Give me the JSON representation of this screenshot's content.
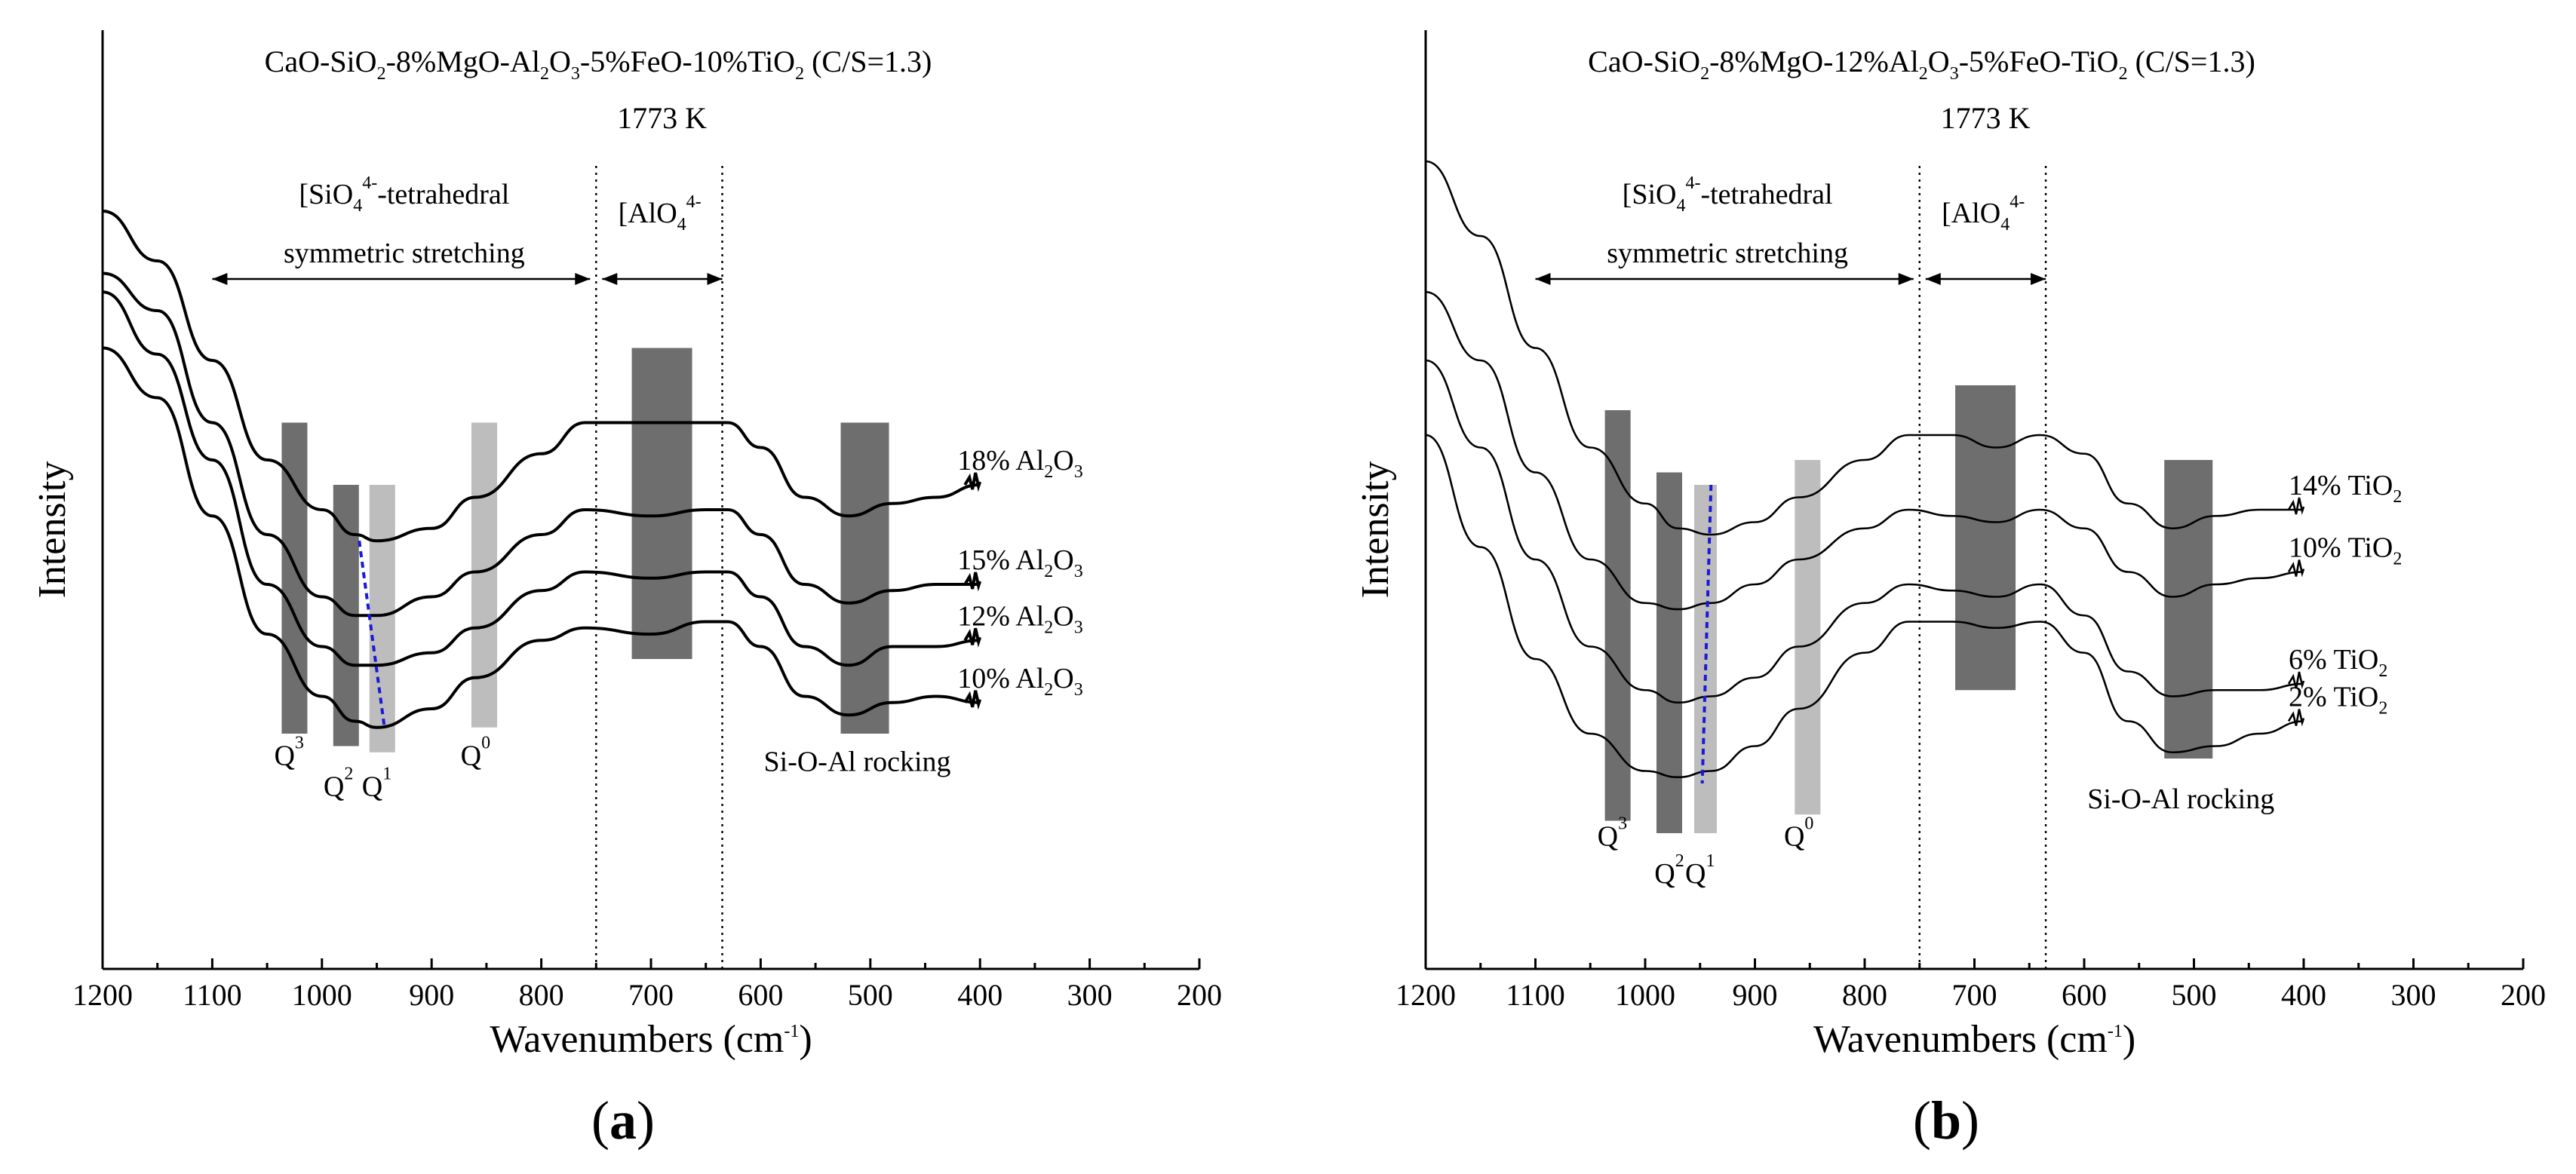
{
  "colors": {
    "band_dark": "#6e6e6e",
    "band_light": "#bdbdbd",
    "trend_line": "#1a1ad6",
    "curve": "#000000"
  },
  "chart_data": [
    {
      "type": "line",
      "panel": "(a)",
      "panel_letter": "a",
      "title_parts": [
        "CaO-SiO",
        "2",
        "-8%MgO-Al",
        "2",
        "O",
        "3",
        "-5%FeO-10%TiO",
        "2",
        " (C/S=1.3)"
      ],
      "temperature": "1773 K",
      "xlabel": "Wavenumbers (cm",
      "xlabel_sup": "-1",
      "xlabel_end": ")",
      "ylabel": "Intensity",
      "xlim": [
        1200,
        200
      ],
      "xticks": [
        1200,
        1100,
        1000,
        900,
        800,
        700,
        600,
        500,
        400,
        300,
        200
      ],
      "region_labels": {
        "sio4_a": "[SiO",
        "sio4_sub": "4",
        "sio4_sup": "4-",
        "sio4_b": "-tetrahedral",
        "sio4_line2": "symmetric stretching",
        "alo4_a": "[AlO",
        "alo4_sub": "4",
        "alo4_sup": "4-",
        "rocking": "Si-O-Al rocking"
      },
      "region_bounds": [
        1100,
        750,
        635
      ],
      "q_labels": [
        {
          "base": "Q",
          "sup": "3",
          "x": 1030
        },
        {
          "base": "Q",
          "sup": "2",
          "x": 985
        },
        {
          "base": "Q",
          "sup": "1",
          "x": 950
        },
        {
          "base": "Q",
          "sup": "0",
          "x": 860
        }
      ],
      "bands": [
        {
          "center": 1025,
          "tone": "dark"
        },
        {
          "center": 978,
          "tone": "dark"
        },
        {
          "center": 945,
          "tone": "light"
        },
        {
          "center": 852,
          "tone": "light"
        },
        {
          "center": 690,
          "tone": "dark"
        },
        {
          "center": 505,
          "tone": "dark"
        }
      ],
      "series": [
        {
          "name": "18% Al2O3",
          "label_a": "18% Al",
          "label_sub1": "2",
          "label_b": "O",
          "label_sub2": "3",
          "x": [
            1200,
            1150,
            1100,
            1050,
            1000,
            970,
            950,
            900,
            860,
            800,
            760,
            700,
            650,
            630,
            600,
            560,
            520,
            480,
            440,
            400
          ],
          "y": [
            1.0,
            0.92,
            0.76,
            0.6,
            0.52,
            0.48,
            0.47,
            0.49,
            0.54,
            0.61,
            0.66,
            0.66,
            0.66,
            0.66,
            0.62,
            0.54,
            0.51,
            0.53,
            0.54,
            0.56
          ]
        },
        {
          "name": "15% Al2O3",
          "label_a": "15% Al",
          "label_sub1": "2",
          "label_b": "O",
          "label_sub2": "3",
          "x": [
            1200,
            1150,
            1100,
            1050,
            1000,
            970,
            950,
            900,
            860,
            800,
            760,
            700,
            650,
            630,
            600,
            560,
            520,
            480,
            440,
            400
          ],
          "y": [
            0.9,
            0.84,
            0.66,
            0.48,
            0.38,
            0.35,
            0.35,
            0.38,
            0.42,
            0.48,
            0.52,
            0.51,
            0.52,
            0.52,
            0.48,
            0.4,
            0.37,
            0.39,
            0.4,
            0.4
          ]
        },
        {
          "name": "12% Al2O3",
          "label_a": "12% Al",
          "label_sub1": "2",
          "label_b": "O",
          "label_sub2": "3",
          "x": [
            1200,
            1150,
            1100,
            1050,
            1000,
            970,
            950,
            900,
            860,
            800,
            760,
            700,
            650,
            630,
            600,
            560,
            520,
            480,
            440,
            400
          ],
          "y": [
            0.87,
            0.77,
            0.6,
            0.4,
            0.3,
            0.27,
            0.27,
            0.29,
            0.33,
            0.39,
            0.42,
            0.41,
            0.42,
            0.42,
            0.38,
            0.3,
            0.27,
            0.3,
            0.3,
            0.31
          ]
        },
        {
          "name": "10% Al2O3",
          "label_a": "10% Al",
          "label_sub1": "2",
          "label_b": "O",
          "label_sub2": "3",
          "x": [
            1200,
            1150,
            1100,
            1050,
            1000,
            970,
            950,
            900,
            860,
            800,
            760,
            700,
            650,
            630,
            600,
            560,
            520,
            480,
            440,
            400
          ],
          "y": [
            0.78,
            0.7,
            0.51,
            0.32,
            0.22,
            0.18,
            0.17,
            0.2,
            0.25,
            0.31,
            0.33,
            0.32,
            0.34,
            0.34,
            0.3,
            0.22,
            0.19,
            0.21,
            0.22,
            0.21
          ]
        }
      ],
      "trend_line": {
        "x": [
          966,
          943
        ],
        "y": [
          0.47,
          0.17
        ]
      }
    },
    {
      "type": "line",
      "panel": "(b)",
      "panel_letter": "b",
      "title_parts": [
        "CaO-SiO",
        "2",
        "-8%MgO-12%Al",
        "2",
        "O",
        "3",
        "-5%FeO-TiO",
        "2",
        " (C/S=1.3)"
      ],
      "temperature": "1773 K",
      "xlabel": "Wavenumbers (cm",
      "xlabel_sup": "-1",
      "xlabel_end": ")",
      "ylabel": "Intensity",
      "xlim": [
        1200,
        200
      ],
      "xticks": [
        1200,
        1100,
        1000,
        900,
        800,
        700,
        600,
        500,
        400,
        300,
        200
      ],
      "region_labels": {
        "sio4_a": "[SiO",
        "sio4_sub": "4",
        "sio4_sup": "4-",
        "sio4_b": "-tetrahedral",
        "sio4_line2": "symmetric stretching",
        "alo4_a": "[AlO",
        "alo4_sub": "4",
        "alo4_sup": "4-",
        "rocking": "Si-O-Al rocking"
      },
      "region_bounds": [
        1100,
        750,
        635
      ],
      "q_labels": [
        {
          "base": "Q",
          "sup": "3",
          "x": 1030
        },
        {
          "base": "Q",
          "sup": "2",
          "x": 978
        },
        {
          "base": "Q",
          "sup": "1",
          "x": 950
        },
        {
          "base": "Q",
          "sup": "0",
          "x": 860
        }
      ],
      "bands": [
        {
          "center": 1025,
          "tone": "dark"
        },
        {
          "center": 978,
          "tone": "dark"
        },
        {
          "center": 945,
          "tone": "light"
        },
        {
          "center": 852,
          "tone": "light"
        },
        {
          "center": 690,
          "tone": "dark"
        },
        {
          "center": 505,
          "tone": "dark"
        }
      ],
      "series": [
        {
          "name": "14% TiO2",
          "label_a": "14% TiO",
          "label_sub1": "2",
          "label_b": "",
          "label_sub2": "",
          "x": [
            1200,
            1150,
            1100,
            1050,
            1000,
            970,
            940,
            900,
            860,
            800,
            760,
            720,
            680,
            640,
            600,
            560,
            520,
            480,
            440,
            400
          ],
          "y": [
            1.08,
            0.96,
            0.78,
            0.62,
            0.53,
            0.49,
            0.48,
            0.5,
            0.54,
            0.6,
            0.64,
            0.64,
            0.62,
            0.64,
            0.61,
            0.53,
            0.49,
            0.51,
            0.52,
            0.52
          ]
        },
        {
          "name": "10% TiO2",
          "label_a": "10% TiO",
          "label_sub1": "2",
          "label_b": "",
          "label_sub2": "",
          "x": [
            1200,
            1150,
            1100,
            1050,
            1000,
            970,
            940,
            900,
            860,
            800,
            760,
            720,
            680,
            640,
            600,
            560,
            520,
            480,
            440,
            400
          ],
          "y": [
            0.87,
            0.76,
            0.58,
            0.44,
            0.37,
            0.36,
            0.37,
            0.4,
            0.44,
            0.49,
            0.52,
            0.51,
            0.5,
            0.52,
            0.49,
            0.42,
            0.38,
            0.4,
            0.41,
            0.42
          ]
        },
        {
          "name": "6% TiO2",
          "label_a": "6% TiO",
          "label_sub1": "2",
          "label_b": "",
          "label_sub2": "",
          "x": [
            1200,
            1150,
            1100,
            1050,
            1000,
            970,
            940,
            900,
            860,
            800,
            760,
            720,
            680,
            640,
            600,
            560,
            520,
            480,
            440,
            400
          ],
          "y": [
            0.76,
            0.62,
            0.44,
            0.3,
            0.23,
            0.21,
            0.22,
            0.25,
            0.3,
            0.37,
            0.4,
            0.39,
            0.38,
            0.4,
            0.35,
            0.26,
            0.22,
            0.23,
            0.23,
            0.24
          ]
        },
        {
          "name": "2% TiO2",
          "label_a": "2% TiO",
          "label_sub1": "2",
          "label_b": "",
          "label_sub2": "",
          "x": [
            1200,
            1150,
            1100,
            1050,
            1000,
            970,
            940,
            900,
            860,
            800,
            760,
            720,
            680,
            640,
            600,
            560,
            520,
            480,
            440,
            400
          ],
          "y": [
            0.64,
            0.46,
            0.28,
            0.16,
            0.1,
            0.09,
            0.1,
            0.14,
            0.2,
            0.29,
            0.34,
            0.34,
            0.33,
            0.34,
            0.29,
            0.18,
            0.13,
            0.14,
            0.16,
            0.18
          ]
        }
      ],
      "trend_line": {
        "x": [
          940,
          948
        ],
        "y": [
          0.56,
          0.08
        ]
      }
    }
  ]
}
